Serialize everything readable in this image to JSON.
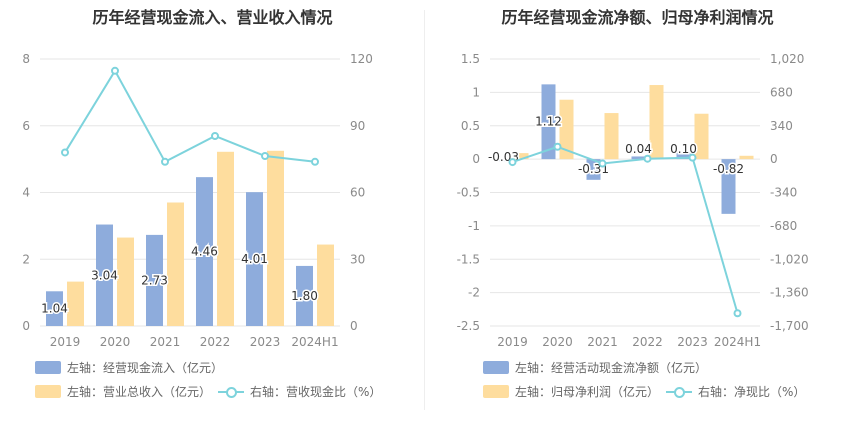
{
  "chart_data": [
    {
      "type": "bar",
      "title": "历年经营现金流入、营业收入情况",
      "categories": [
        "2019",
        "2020",
        "2021",
        "2022",
        "2023",
        "2024H1"
      ],
      "left_axis": {
        "ylim": [
          0,
          8
        ],
        "ticks": [
          "0",
          "2",
          "4",
          "6",
          "8"
        ]
      },
      "right_axis": {
        "ylim": [
          0,
          120
        ],
        "ticks": [
          "0",
          "30",
          "60",
          "90",
          "120"
        ]
      },
      "series": [
        {
          "name": "左轴：经营现金流入（亿元）",
          "kind": "bar",
          "axis": "left",
          "color": "#8eacdc",
          "values": [
            1.04,
            3.04,
            2.73,
            4.46,
            4.01,
            1.8
          ],
          "labels": [
            "1.04",
            "3.04",
            "2.73",
            "4.46",
            "4.01",
            "1.80"
          ]
        },
        {
          "name": "左轴：营业总收入（亿元）",
          "kind": "bar",
          "axis": "left",
          "color": "#fedd9e",
          "values": [
            1.33,
            2.65,
            3.7,
            5.22,
            5.25,
            2.44
          ]
        },
        {
          "name": "右轴：营收现金比（%）",
          "kind": "line",
          "axis": "right",
          "color": "#7dd3dc",
          "values": [
            78,
            114.7,
            73.8,
            85.4,
            76.4,
            73.8
          ]
        }
      ]
    },
    {
      "type": "bar",
      "title": "历年经营现金流净额、归母净利润情况",
      "categories": [
        "2019",
        "2020",
        "2021",
        "2022",
        "2023",
        "2024H1"
      ],
      "left_axis": {
        "ylim": [
          -2.5,
          1.5
        ],
        "ticks": [
          "-2.5",
          "-2",
          "-1.5",
          "-1",
          "-0.5",
          "0",
          "0.5",
          "1",
          "1.5"
        ]
      },
      "right_axis": {
        "ylim": [
          -1700,
          1020
        ],
        "ticks": [
          "-1,700",
          "-1,360",
          "-1,020",
          "-680",
          "-340",
          "0",
          "340",
          "680",
          "1,020"
        ]
      },
      "series": [
        {
          "name": "左轴：经营活动现金流净额（亿元）",
          "kind": "bar",
          "axis": "left",
          "color": "#8eacdc",
          "values": [
            -0.03,
            1.12,
            -0.31,
            0.04,
            0.1,
            -0.82
          ],
          "labels": [
            "-0.03",
            "1.12",
            "-0.31",
            "0.04",
            "0.10",
            "-0.82"
          ]
        },
        {
          "name": "左轴：归母净利润（亿元）",
          "kind": "bar",
          "axis": "left",
          "color": "#fedd9e",
          "values": [
            0.09,
            0.89,
            0.69,
            1.11,
            0.68,
            0.05
          ]
        },
        {
          "name": "右轴：净现比（%）",
          "kind": "line",
          "axis": "right",
          "color": "#7dd3dc",
          "values": [
            -30,
            126,
            -45,
            4,
            15,
            -1570
          ]
        }
      ]
    }
  ]
}
